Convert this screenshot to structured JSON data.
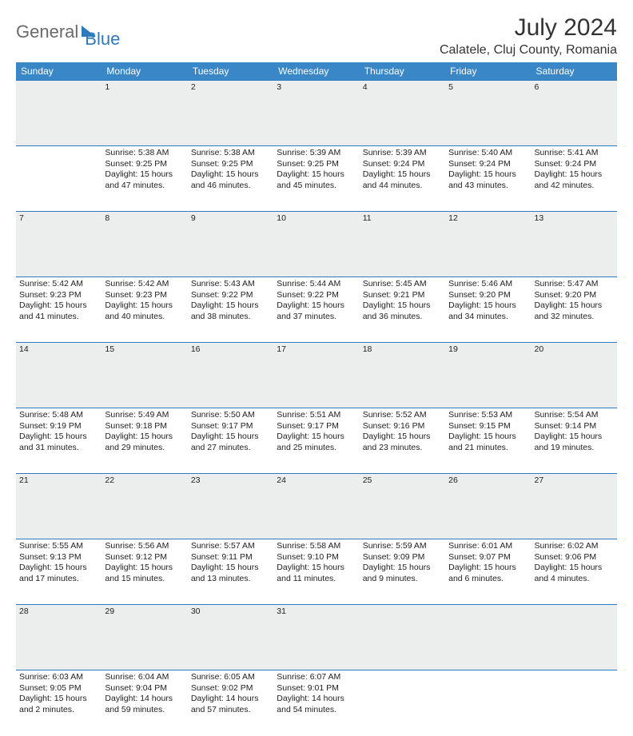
{
  "logo": {
    "part1": "General",
    "part2": "Blue"
  },
  "title": "July 2024",
  "location": "Calatele, Cluj County, Romania",
  "colors": {
    "header_bg": "#3a87c8",
    "brand_blue": "#2f79bd",
    "grey_text": "#6a6a6a",
    "daynum_bg": "#eceded",
    "rule": "#2f79bd"
  },
  "weekdays": [
    "Sunday",
    "Monday",
    "Tuesday",
    "Wednesday",
    "Thursday",
    "Friday",
    "Saturday"
  ],
  "weeks": [
    {
      "nums": [
        "",
        "1",
        "2",
        "3",
        "4",
        "5",
        "6"
      ],
      "cells": [
        null,
        {
          "sunrise": "Sunrise: 5:38 AM",
          "sunset": "Sunset: 9:25 PM",
          "day1": "Daylight: 15 hours",
          "day2": "and 47 minutes."
        },
        {
          "sunrise": "Sunrise: 5:38 AM",
          "sunset": "Sunset: 9:25 PM",
          "day1": "Daylight: 15 hours",
          "day2": "and 46 minutes."
        },
        {
          "sunrise": "Sunrise: 5:39 AM",
          "sunset": "Sunset: 9:25 PM",
          "day1": "Daylight: 15 hours",
          "day2": "and 45 minutes."
        },
        {
          "sunrise": "Sunrise: 5:39 AM",
          "sunset": "Sunset: 9:24 PM",
          "day1": "Daylight: 15 hours",
          "day2": "and 44 minutes."
        },
        {
          "sunrise": "Sunrise: 5:40 AM",
          "sunset": "Sunset: 9:24 PM",
          "day1": "Daylight: 15 hours",
          "day2": "and 43 minutes."
        },
        {
          "sunrise": "Sunrise: 5:41 AM",
          "sunset": "Sunset: 9:24 PM",
          "day1": "Daylight: 15 hours",
          "day2": "and 42 minutes."
        }
      ]
    },
    {
      "nums": [
        "7",
        "8",
        "9",
        "10",
        "11",
        "12",
        "13"
      ],
      "cells": [
        {
          "sunrise": "Sunrise: 5:42 AM",
          "sunset": "Sunset: 9:23 PM",
          "day1": "Daylight: 15 hours",
          "day2": "and 41 minutes."
        },
        {
          "sunrise": "Sunrise: 5:42 AM",
          "sunset": "Sunset: 9:23 PM",
          "day1": "Daylight: 15 hours",
          "day2": "and 40 minutes."
        },
        {
          "sunrise": "Sunrise: 5:43 AM",
          "sunset": "Sunset: 9:22 PM",
          "day1": "Daylight: 15 hours",
          "day2": "and 38 minutes."
        },
        {
          "sunrise": "Sunrise: 5:44 AM",
          "sunset": "Sunset: 9:22 PM",
          "day1": "Daylight: 15 hours",
          "day2": "and 37 minutes."
        },
        {
          "sunrise": "Sunrise: 5:45 AM",
          "sunset": "Sunset: 9:21 PM",
          "day1": "Daylight: 15 hours",
          "day2": "and 36 minutes."
        },
        {
          "sunrise": "Sunrise: 5:46 AM",
          "sunset": "Sunset: 9:20 PM",
          "day1": "Daylight: 15 hours",
          "day2": "and 34 minutes."
        },
        {
          "sunrise": "Sunrise: 5:47 AM",
          "sunset": "Sunset: 9:20 PM",
          "day1": "Daylight: 15 hours",
          "day2": "and 32 minutes."
        }
      ]
    },
    {
      "nums": [
        "14",
        "15",
        "16",
        "17",
        "18",
        "19",
        "20"
      ],
      "cells": [
        {
          "sunrise": "Sunrise: 5:48 AM",
          "sunset": "Sunset: 9:19 PM",
          "day1": "Daylight: 15 hours",
          "day2": "and 31 minutes."
        },
        {
          "sunrise": "Sunrise: 5:49 AM",
          "sunset": "Sunset: 9:18 PM",
          "day1": "Daylight: 15 hours",
          "day2": "and 29 minutes."
        },
        {
          "sunrise": "Sunrise: 5:50 AM",
          "sunset": "Sunset: 9:17 PM",
          "day1": "Daylight: 15 hours",
          "day2": "and 27 minutes."
        },
        {
          "sunrise": "Sunrise: 5:51 AM",
          "sunset": "Sunset: 9:17 PM",
          "day1": "Daylight: 15 hours",
          "day2": "and 25 minutes."
        },
        {
          "sunrise": "Sunrise: 5:52 AM",
          "sunset": "Sunset: 9:16 PM",
          "day1": "Daylight: 15 hours",
          "day2": "and 23 minutes."
        },
        {
          "sunrise": "Sunrise: 5:53 AM",
          "sunset": "Sunset: 9:15 PM",
          "day1": "Daylight: 15 hours",
          "day2": "and 21 minutes."
        },
        {
          "sunrise": "Sunrise: 5:54 AM",
          "sunset": "Sunset: 9:14 PM",
          "day1": "Daylight: 15 hours",
          "day2": "and 19 minutes."
        }
      ]
    },
    {
      "nums": [
        "21",
        "22",
        "23",
        "24",
        "25",
        "26",
        "27"
      ],
      "cells": [
        {
          "sunrise": "Sunrise: 5:55 AM",
          "sunset": "Sunset: 9:13 PM",
          "day1": "Daylight: 15 hours",
          "day2": "and 17 minutes."
        },
        {
          "sunrise": "Sunrise: 5:56 AM",
          "sunset": "Sunset: 9:12 PM",
          "day1": "Daylight: 15 hours",
          "day2": "and 15 minutes."
        },
        {
          "sunrise": "Sunrise: 5:57 AM",
          "sunset": "Sunset: 9:11 PM",
          "day1": "Daylight: 15 hours",
          "day2": "and 13 minutes."
        },
        {
          "sunrise": "Sunrise: 5:58 AM",
          "sunset": "Sunset: 9:10 PM",
          "day1": "Daylight: 15 hours",
          "day2": "and 11 minutes."
        },
        {
          "sunrise": "Sunrise: 5:59 AM",
          "sunset": "Sunset: 9:09 PM",
          "day1": "Daylight: 15 hours",
          "day2": "and 9 minutes."
        },
        {
          "sunrise": "Sunrise: 6:01 AM",
          "sunset": "Sunset: 9:07 PM",
          "day1": "Daylight: 15 hours",
          "day2": "and 6 minutes."
        },
        {
          "sunrise": "Sunrise: 6:02 AM",
          "sunset": "Sunset: 9:06 PM",
          "day1": "Daylight: 15 hours",
          "day2": "and 4 minutes."
        }
      ]
    },
    {
      "nums": [
        "28",
        "29",
        "30",
        "31",
        "",
        "",
        ""
      ],
      "cells": [
        {
          "sunrise": "Sunrise: 6:03 AM",
          "sunset": "Sunset: 9:05 PM",
          "day1": "Daylight: 15 hours",
          "day2": "and 2 minutes."
        },
        {
          "sunrise": "Sunrise: 6:04 AM",
          "sunset": "Sunset: 9:04 PM",
          "day1": "Daylight: 14 hours",
          "day2": "and 59 minutes."
        },
        {
          "sunrise": "Sunrise: 6:05 AM",
          "sunset": "Sunset: 9:02 PM",
          "day1": "Daylight: 14 hours",
          "day2": "and 57 minutes."
        },
        {
          "sunrise": "Sunrise: 6:07 AM",
          "sunset": "Sunset: 9:01 PM",
          "day1": "Daylight: 14 hours",
          "day2": "and 54 minutes."
        },
        null,
        null,
        null
      ]
    }
  ]
}
